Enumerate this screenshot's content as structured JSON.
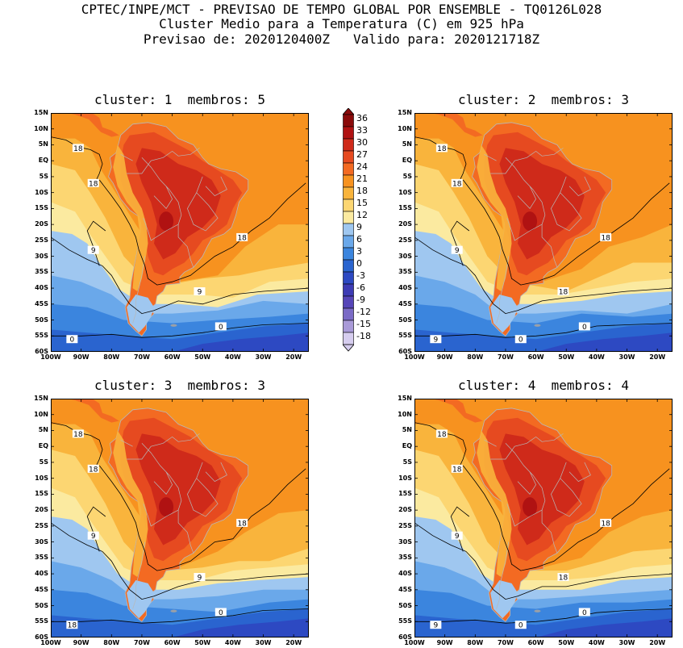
{
  "header": {
    "line1": "CPTEC/INPE/MCT - PREVISAO DE TEMPO GLOBAL POR ENSEMBLE - TQ0126L028",
    "line2": "Cluster Medio para a Temperatura (C) em 925 hPa",
    "line3": "Previsao de: 2020120400Z   Valido para: 2020121718Z"
  },
  "colorbar": {
    "levels": [
      "36",
      "33",
      "30",
      "27",
      "24",
      "21",
      "18",
      "15",
      "12",
      "9",
      "6",
      "3",
      "0",
      "-3",
      "-6",
      "-9",
      "-12",
      "-15",
      "-18"
    ],
    "colors": [
      "#8a0a0a",
      "#b01212",
      "#cf2a1a",
      "#e64a20",
      "#f36a22",
      "#f7921f",
      "#f9b43c",
      "#fcd672",
      "#fbeaa0",
      "#9fc7f0",
      "#6aa8ea",
      "#3b85de",
      "#2a64cf",
      "#2d49c2",
      "#3d3bb4",
      "#5645b8",
      "#7a6ac6",
      "#a99ad8",
      "#d6cdef"
    ]
  },
  "lat_ticks": [
    "15N",
    "10N",
    "5N",
    "EQ",
    "5S",
    "10S",
    "15S",
    "20S",
    "25S",
    "30S",
    "35S",
    "40S",
    "45S",
    "50S",
    "55S",
    "60S"
  ],
  "lon_ticks": [
    "100W",
    "90W",
    "80W",
    "70W",
    "60W",
    "50W",
    "40W",
    "30W",
    "20W"
  ],
  "panels": [
    {
      "title": "cluster: 1  membros: 5",
      "contour_labels": [
        "18",
        "18",
        "18",
        "9",
        "9",
        "0",
        "0"
      ]
    },
    {
      "title": "cluster: 2  membros: 3",
      "contour_labels": [
        "18",
        "18",
        "18",
        "9",
        "18",
        "9",
        "0",
        "0"
      ]
    },
    {
      "title": "cluster: 3  membros: 3",
      "contour_labels": [
        "18",
        "18",
        "18",
        "9",
        "9",
        "18",
        "0"
      ]
    },
    {
      "title": "cluster: 4  membros: 4",
      "contour_labels": [
        "18",
        "18",
        "18",
        "9",
        "18",
        "9",
        "0",
        "0"
      ]
    }
  ],
  "chart_data": {
    "type": "heatmap",
    "title": "Cluster Medio para a Temperatura (C) em 925 hPa",
    "subtitle": "Previsao de: 2020120400Z   Valido para: 2020121718Z",
    "variable_unit": "C",
    "color_levels": [
      36,
      33,
      30,
      27,
      24,
      21,
      18,
      15,
      12,
      9,
      6,
      3,
      0,
      -3,
      -6,
      -9,
      -12,
      -15,
      -18
    ],
    "xlim": [
      "100W",
      "15W"
    ],
    "ylim": [
      "60S",
      "15N"
    ],
    "contour_levels": [
      18,
      9,
      0
    ],
    "panels": [
      {
        "cluster": 1,
        "membros": 5
      },
      {
        "cluster": 2,
        "membros": 3
      },
      {
        "cluster": 3,
        "membros": 3
      },
      {
        "cluster": 4,
        "membros": 4
      }
    ]
  }
}
